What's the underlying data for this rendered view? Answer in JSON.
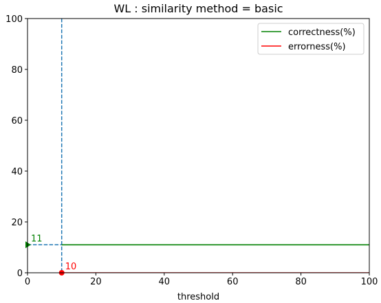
{
  "chart_data": {
    "type": "line",
    "title": "WL : similarity method = basic",
    "xlabel": "threshold",
    "ylabel": "",
    "xlim": [
      0,
      100
    ],
    "ylim": [
      0,
      100
    ],
    "xticks": [
      0,
      20,
      40,
      60,
      80,
      100
    ],
    "yticks": [
      0,
      20,
      40,
      60,
      80,
      100
    ],
    "grid": false,
    "legend_position": "top-right",
    "series": [
      {
        "name": "correctness(%)",
        "color": "#008000",
        "x": [
          10,
          100
        ],
        "y": [
          11,
          11
        ]
      },
      {
        "name": "errorness(%)",
        "color": "#ff0000",
        "x": [
          10,
          100
        ],
        "y": [
          0,
          0
        ]
      }
    ],
    "reference_lines": [
      {
        "orientation": "vertical",
        "x": 10,
        "color": "#1f77b4",
        "style": "dashed"
      },
      {
        "orientation": "horizontal",
        "y": 11,
        "color": "#1f77b4",
        "style": "dashed"
      }
    ],
    "annotations": [
      {
        "text": "11",
        "x": 0,
        "y": 11,
        "color": "#008000",
        "marker": "triangle-right"
      },
      {
        "text": "10",
        "x": 10,
        "y": 0,
        "color": "#ff0000",
        "marker": "circle"
      }
    ]
  }
}
